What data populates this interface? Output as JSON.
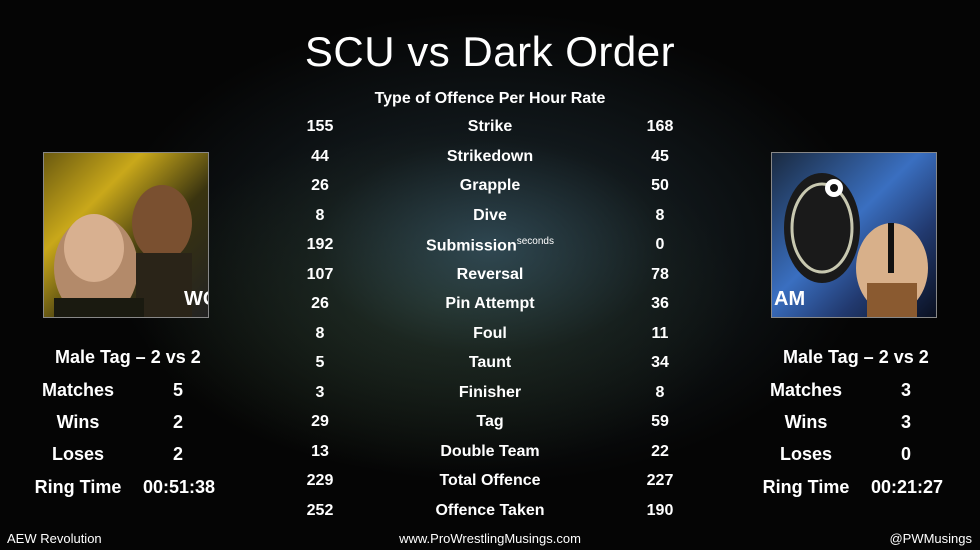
{
  "title": "SCU vs Dark Order",
  "subtitle": "Type of Offence Per Hour Rate",
  "stats": [
    {
      "left": "155",
      "cat": "Strike",
      "right": "168"
    },
    {
      "left": "44",
      "cat": "Strikedown",
      "right": "45"
    },
    {
      "left": "26",
      "cat": "Grapple",
      "right": "50"
    },
    {
      "left": "8",
      "cat": "Dive",
      "right": "8"
    },
    {
      "left": "192",
      "cat": "Submission",
      "sup": "seconds",
      "right": "0"
    },
    {
      "left": "107",
      "cat": "Reversal",
      "right": "78"
    },
    {
      "left": "26",
      "cat": "Pin Attempt",
      "right": "36"
    },
    {
      "left": "8",
      "cat": "Foul",
      "right": "11"
    },
    {
      "left": "5",
      "cat": "Taunt",
      "right": "34"
    },
    {
      "left": "3",
      "cat": "Finisher",
      "right": "8"
    },
    {
      "left": "29",
      "cat": "Tag",
      "right": "59"
    },
    {
      "left": "13",
      "cat": "Double Team",
      "right": "22"
    },
    {
      "left": "229",
      "cat": "Total Offence",
      "right": "227"
    },
    {
      "left": "252",
      "cat": "Offence Taken",
      "right": "190"
    }
  ],
  "left_team": {
    "header": "Male Tag – 2 vs 2",
    "matches_label": "Matches",
    "matches": "5",
    "wins_label": "Wins",
    "wins": "2",
    "loses_label": "Loses",
    "loses": "2",
    "ring_time_label": "Ring Time",
    "ring_time": "00:51:38",
    "portrait_text": "WO"
  },
  "right_team": {
    "header": "Male Tag – 2 vs 2",
    "matches_label": "Matches",
    "matches": "3",
    "wins_label": "Wins",
    "wins": "3",
    "loses_label": "Loses",
    "loses": "0",
    "ring_time_label": "Ring Time",
    "ring_time": "00:21:27",
    "portrait_text": "AM"
  },
  "footer": {
    "left": "AEW Revolution",
    "center": "www.ProWrestlingMusings.com",
    "right": "@PWMusings"
  }
}
